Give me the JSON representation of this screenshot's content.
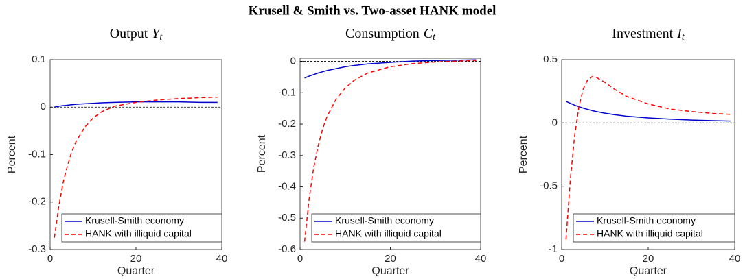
{
  "title": "Krusell & Smith vs. Two-asset HANK model",
  "chart_data": [
    {
      "type": "line",
      "title": "Output",
      "title_symbol": "Y",
      "title_subscript": "t",
      "x_label": "Quarter",
      "y_label": "Percent",
      "xlim": [
        0,
        40
      ],
      "xticks": [
        0,
        20,
        40
      ],
      "ylim": [
        -0.3,
        0.1
      ],
      "yticks": [
        -0.3,
        -0.2,
        -0.1,
        0,
        0.1
      ],
      "reference_line": 0,
      "legend": "lower left",
      "x": [
        1,
        2,
        3,
        4,
        5,
        6,
        8,
        10,
        12,
        15,
        20,
        25,
        30,
        35,
        39
      ],
      "series": [
        {
          "name": "Krusell-Smith economy",
          "color": "#0000cc",
          "style": "solid",
          "values": [
            0,
            0.002,
            0.003,
            0.004,
            0.005,
            0.006,
            0.007,
            0.008,
            0.009,
            0.01,
            0.011,
            0.011,
            0.011,
            0.01,
            0.01
          ]
        },
        {
          "name": "HANK with illiquid capital",
          "color": "#ff0000",
          "style": "dashed",
          "values": [
            -0.275,
            -0.21,
            -0.16,
            -0.125,
            -0.095,
            -0.073,
            -0.043,
            -0.023,
            -0.01,
            0.002,
            0.01,
            0.015,
            0.018,
            0.02,
            0.021
          ]
        }
      ]
    },
    {
      "type": "line",
      "title": "Consumption",
      "title_symbol": "C",
      "title_subscript": "t",
      "x_label": "Quarter",
      "y_label": "Percent",
      "xlim": [
        0,
        40
      ],
      "xticks": [
        0,
        20,
        40
      ],
      "ylim": [
        -0.6,
        0.01
      ],
      "yticks": [
        -0.6,
        -0.5,
        -0.4,
        -0.3,
        -0.2,
        -0.1,
        0
      ],
      "reference_line": 0,
      "legend": "lower left",
      "x": [
        1,
        2,
        3,
        4,
        5,
        6,
        8,
        10,
        12,
        15,
        20,
        25,
        30,
        35,
        39
      ],
      "series": [
        {
          "name": "Krusell-Smith economy",
          "color": "#0000cc",
          "style": "solid",
          "values": [
            -0.053,
            -0.047,
            -0.042,
            -0.037,
            -0.033,
            -0.029,
            -0.023,
            -0.017,
            -0.013,
            -0.008,
            -0.003,
            0.001,
            0.003,
            0.004,
            0.005
          ]
        },
        {
          "name": "HANK with illiquid capital",
          "color": "#ff0000",
          "style": "dashed",
          "values": [
            -0.575,
            -0.44,
            -0.34,
            -0.27,
            -0.215,
            -0.175,
            -0.12,
            -0.085,
            -0.06,
            -0.037,
            -0.017,
            -0.007,
            -0.002,
            0.001,
            0.003
          ]
        }
      ]
    },
    {
      "type": "line",
      "title": "Investment",
      "title_symbol": "I",
      "title_subscript": "t",
      "x_label": "Quarter",
      "y_label": "Percent",
      "xlim": [
        0,
        40
      ],
      "xticks": [
        0,
        20,
        40
      ],
      "ylim": [
        -1,
        0.5
      ],
      "yticks": [
        -1,
        -0.5,
        0,
        0.5
      ],
      "reference_line": 0,
      "legend": "lower left",
      "x": [
        1,
        2,
        3,
        4,
        5,
        6,
        7,
        8,
        10,
        12,
        15,
        20,
        25,
        30,
        35,
        39
      ],
      "series": [
        {
          "name": "Krusell-Smith economy",
          "color": "#0000cc",
          "style": "solid",
          "values": [
            0.17,
            0.155,
            0.14,
            0.128,
            0.117,
            0.107,
            0.098,
            0.09,
            0.077,
            0.066,
            0.053,
            0.04,
            0.03,
            0.023,
            0.018,
            0.015
          ]
        },
        {
          "name": "HANK with illiquid capital",
          "color": "#ff0000",
          "style": "dashed",
          "values": [
            -0.92,
            -0.45,
            -0.1,
            0.13,
            0.27,
            0.34,
            0.365,
            0.36,
            0.32,
            0.27,
            0.21,
            0.15,
            0.11,
            0.09,
            0.075,
            0.068
          ]
        }
      ]
    }
  ]
}
